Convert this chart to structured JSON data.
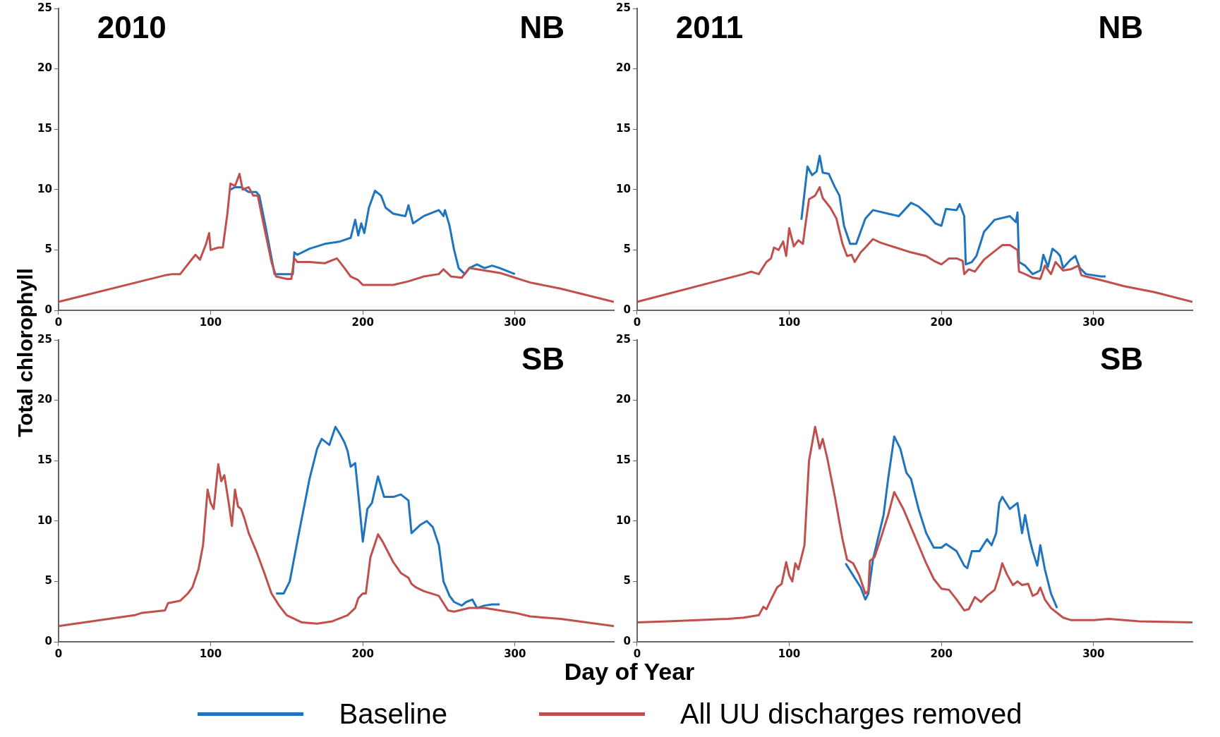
{
  "chart_data": [
    {
      "type": "line",
      "ylabel": "Total chlorophyll",
      "annotations": [
        "2010",
        "NB"
      ],
      "xlim": [
        0,
        365
      ],
      "xticks": [
        0,
        100,
        200,
        300
      ],
      "ylim": [
        0,
        25
      ],
      "yticks": [
        0,
        5,
        10,
        15,
        20,
        25
      ],
      "grid": false,
      "legend": "bottom",
      "marker": "none",
      "line_style": "solid",
      "series": [
        {
          "name": "Baseline",
          "color": "#1f74c0",
          "x": [
            113,
            116,
            120,
            125,
            130,
            132,
            136,
            142,
            150,
            154,
            155,
            157,
            165,
            175,
            185,
            192,
            195,
            197,
            199,
            201,
            204,
            208,
            212,
            215,
            220,
            228,
            230,
            233,
            240,
            250,
            253,
            254,
            257,
            260,
            263,
            267,
            270,
            275,
            280,
            285,
            290,
            300
          ],
          "values": [
            10.0,
            10.2,
            10.2,
            9.8,
            9.8,
            9.5,
            7.0,
            3.0,
            3.0,
            3.0,
            4.8,
            4.6,
            5.1,
            5.5,
            5.7,
            6.0,
            7.5,
            6.2,
            7.2,
            6.4,
            8.5,
            9.9,
            9.5,
            8.5,
            8.0,
            7.8,
            8.7,
            7.2,
            7.8,
            8.3,
            7.8,
            8.3,
            7.0,
            5.0,
            3.5,
            3.0,
            3.5,
            3.8,
            3.5,
            3.7,
            3.5,
            3.0
          ]
        },
        {
          "name": "All UU discharges removed",
          "color": "#c0504d",
          "x": [
            0,
            70,
            75,
            80,
            85,
            90,
            93,
            97,
            99,
            100,
            105,
            108,
            111,
            113,
            116,
            119,
            121,
            125,
            128,
            131,
            135,
            140,
            143,
            150,
            153,
            155,
            157,
            165,
            175,
            183,
            188,
            192,
            197,
            200,
            210,
            220,
            230,
            240,
            250,
            253,
            258,
            265,
            270,
            280,
            290,
            300,
            310,
            330,
            365
          ],
          "values": [
            0.7,
            2.9,
            3.0,
            3.0,
            3.8,
            4.6,
            4.2,
            5.5,
            6.4,
            5.0,
            5.2,
            5.2,
            8.0,
            10.5,
            10.3,
            11.3,
            10.0,
            10.2,
            9.5,
            9.5,
            7.0,
            4.0,
            2.8,
            2.6,
            2.6,
            4.3,
            4.0,
            4.0,
            3.9,
            4.3,
            3.5,
            2.8,
            2.5,
            2.1,
            2.1,
            2.1,
            2.4,
            2.8,
            3.0,
            3.4,
            2.8,
            2.7,
            3.5,
            3.3,
            3.1,
            2.7,
            2.3,
            1.8,
            0.7
          ]
        }
      ]
    },
    {
      "type": "line",
      "annotations": [
        "2011",
        "NB"
      ],
      "xlim": [
        0,
        365
      ],
      "xticks": [
        0,
        100,
        200,
        300
      ],
      "ylim": [
        0,
        25
      ],
      "yticks": [
        0,
        5,
        10,
        15,
        20,
        25
      ],
      "grid": false,
      "marker": "none",
      "line_style": "solid",
      "series": [
        {
          "color": "#1f74c0",
          "x": [
            108,
            112,
            115,
            118,
            120,
            122,
            126,
            130,
            133,
            136,
            140,
            144,
            150,
            155,
            165,
            172,
            180,
            185,
            192,
            196,
            200,
            203,
            210,
            212,
            215,
            216,
            220,
            223,
            228,
            235,
            245,
            249,
            250,
            251,
            255,
            260,
            265,
            267,
            270,
            273,
            276,
            278,
            280,
            285,
            288,
            291,
            295,
            305,
            308
          ],
          "values": [
            7.5,
            11.9,
            11.2,
            11.5,
            12.8,
            11.4,
            11.3,
            10.2,
            9.5,
            7.0,
            5.5,
            5.5,
            7.6,
            8.3,
            8.0,
            7.8,
            8.9,
            8.6,
            7.8,
            7.2,
            7.0,
            8.4,
            8.3,
            8.8,
            7.8,
            3.8,
            4.0,
            4.5,
            6.5,
            7.5,
            7.8,
            7.3,
            8.1,
            4.0,
            3.7,
            3.0,
            3.3,
            4.6,
            3.6,
            5.1,
            4.8,
            4.5,
            3.5,
            4.2,
            4.5,
            3.5,
            3.0,
            2.8,
            2.8
          ]
        },
        {
          "color": "#c0504d",
          "x": [
            0,
            70,
            75,
            80,
            85,
            88,
            90,
            93,
            96,
            98,
            100,
            103,
            106,
            109,
            110,
            113,
            117,
            120,
            122,
            127,
            131,
            135,
            138,
            141,
            143,
            147,
            150,
            155,
            160,
            170,
            180,
            190,
            195,
            200,
            205,
            210,
            214,
            215,
            218,
            222,
            228,
            235,
            240,
            245,
            250,
            251,
            255,
            260,
            265,
            268,
            272,
            275,
            280,
            285,
            290,
            292,
            295,
            305,
            320,
            340,
            365
          ],
          "values": [
            0.7,
            3.0,
            3.2,
            3.0,
            4.0,
            4.3,
            5.2,
            5.0,
            5.7,
            4.5,
            6.8,
            5.3,
            5.8,
            5.5,
            6.5,
            9.2,
            9.5,
            10.2,
            9.3,
            8.5,
            7.6,
            5.5,
            4.5,
            4.6,
            4.0,
            4.8,
            5.2,
            5.9,
            5.6,
            5.2,
            4.8,
            4.5,
            4.1,
            3.8,
            4.3,
            4.3,
            4.1,
            3.0,
            3.4,
            3.2,
            4.2,
            4.9,
            5.4,
            5.4,
            5.0,
            3.2,
            3.0,
            2.7,
            2.6,
            3.7,
            3.0,
            4.0,
            3.3,
            3.4,
            3.7,
            2.9,
            2.8,
            2.5,
            2.0,
            1.5,
            0.7
          ]
        }
      ]
    },
    {
      "type": "line",
      "xlabel": "Day of Year",
      "annotations": [
        "SB"
      ],
      "xlim": [
        0,
        365
      ],
      "xticks": [
        0,
        100,
        200,
        300
      ],
      "ylim": [
        0,
        25
      ],
      "yticks": [
        0,
        5,
        10,
        15,
        20,
        25
      ],
      "grid": false,
      "marker": "none",
      "line_style": "solid",
      "series": [
        {
          "color": "#1f74c0",
          "x": [
            143,
            148,
            152,
            158,
            165,
            170,
            173,
            178,
            182,
            185,
            188,
            190,
            192,
            195,
            198,
            200,
            203,
            206,
            210,
            214,
            220,
            225,
            230,
            232,
            238,
            242,
            246,
            250,
            253,
            257,
            260,
            265,
            268,
            272,
            275,
            280,
            285,
            290
          ],
          "values": [
            4.0,
            4.0,
            5.0,
            9.0,
            13.5,
            16.0,
            16.8,
            16.3,
            17.8,
            17.2,
            16.5,
            15.8,
            14.5,
            14.8,
            11.0,
            8.3,
            11.0,
            11.5,
            13.7,
            12.0,
            12.0,
            12.2,
            11.7,
            9.0,
            9.7,
            10.0,
            9.5,
            8.0,
            5.0,
            3.8,
            3.3,
            3.0,
            3.3,
            3.5,
            2.8,
            3.0,
            3.1,
            3.1
          ]
        },
        {
          "color": "#c0504d",
          "x": [
            0,
            50,
            55,
            70,
            72,
            80,
            85,
            88,
            92,
            95,
            98,
            100,
            102,
            105,
            107,
            109,
            112,
            114,
            116,
            118,
            120,
            122,
            125,
            130,
            135,
            140,
            145,
            150,
            160,
            170,
            180,
            190,
            195,
            197,
            200,
            202,
            205,
            210,
            213,
            220,
            225,
            230,
            232,
            235,
            240,
            250,
            253,
            256,
            260,
            270,
            280,
            290,
            300,
            310,
            330,
            365
          ],
          "values": [
            1.3,
            2.2,
            2.4,
            2.6,
            3.2,
            3.4,
            4.0,
            4.5,
            6.0,
            8.0,
            12.6,
            11.5,
            11.0,
            14.7,
            13.3,
            13.8,
            11.4,
            9.6,
            12.6,
            11.2,
            11.0,
            10.3,
            9.0,
            7.5,
            5.8,
            4.0,
            3.0,
            2.2,
            1.6,
            1.5,
            1.7,
            2.2,
            2.8,
            3.6,
            4.0,
            4.0,
            7.0,
            8.9,
            8.3,
            6.6,
            5.7,
            5.3,
            4.8,
            4.5,
            4.2,
            3.8,
            3.2,
            2.6,
            2.5,
            2.8,
            2.8,
            2.6,
            2.4,
            2.1,
            1.9,
            1.3
          ]
        }
      ]
    },
    {
      "type": "line",
      "annotations": [
        "SB"
      ],
      "xlim": [
        0,
        365
      ],
      "xticks": [
        0,
        100,
        200,
        300
      ],
      "ylim": [
        0,
        25
      ],
      "yticks": [
        0,
        5,
        10,
        15,
        20,
        25
      ],
      "grid": false,
      "marker": "none",
      "line_style": "solid",
      "series": [
        {
          "color": "#1f74c0",
          "x": [
            137,
            142,
            147,
            150,
            152,
            155,
            162,
            165,
            169,
            173,
            177,
            180,
            185,
            190,
            195,
            200,
            203,
            210,
            215,
            217,
            220,
            225,
            230,
            233,
            236,
            238,
            240,
            245,
            250,
            253,
            255,
            258,
            260,
            263,
            265,
            268,
            272,
            276
          ],
          "values": [
            6.5,
            5.5,
            4.5,
            3.5,
            4.0,
            6.8,
            10.5,
            13.5,
            17.0,
            16.0,
            14.0,
            13.5,
            11.0,
            9.0,
            7.8,
            7.8,
            8.1,
            7.5,
            6.3,
            6.1,
            7.5,
            7.5,
            8.5,
            8.0,
            9.0,
            11.5,
            12.0,
            11.0,
            11.5,
            9.0,
            10.5,
            8.5,
            7.5,
            6.3,
            8.0,
            6.0,
            4.0,
            2.8
          ]
        },
        {
          "color": "#c0504d",
          "x": [
            0,
            20,
            40,
            60,
            70,
            75,
            80,
            83,
            85,
            88,
            92,
            95,
            98,
            100,
            102,
            104,
            106,
            110,
            113,
            117,
            120,
            122,
            125,
            130,
            135,
            138,
            142,
            146,
            150,
            152,
            153,
            156,
            160,
            165,
            169,
            175,
            180,
            185,
            190,
            195,
            200,
            205,
            210,
            215,
            218,
            222,
            226,
            230,
            235,
            238,
            240,
            243,
            247,
            250,
            253,
            257,
            260,
            263,
            265,
            268,
            272,
            280,
            285,
            300,
            310,
            330,
            365
          ],
          "values": [
            1.6,
            1.7,
            1.8,
            1.9,
            2.0,
            2.1,
            2.2,
            2.9,
            2.7,
            3.5,
            4.5,
            4.8,
            6.6,
            5.5,
            5.0,
            6.5,
            6.0,
            8.0,
            15.0,
            17.8,
            16.0,
            16.8,
            15.2,
            12.0,
            8.5,
            6.8,
            6.5,
            5.5,
            4.0,
            4.2,
            6.7,
            7.0,
            8.5,
            10.5,
            12.4,
            11.0,
            9.5,
            8.0,
            6.5,
            5.2,
            4.4,
            4.3,
            3.5,
            2.6,
            2.7,
            3.7,
            3.3,
            3.8,
            4.3,
            5.5,
            6.5,
            5.6,
            4.7,
            5.0,
            4.7,
            4.8,
            3.8,
            4.0,
            4.5,
            3.5,
            2.8,
            2.0,
            1.8,
            1.8,
            1.9,
            1.7,
            1.6
          ]
        }
      ]
    }
  ]
}
